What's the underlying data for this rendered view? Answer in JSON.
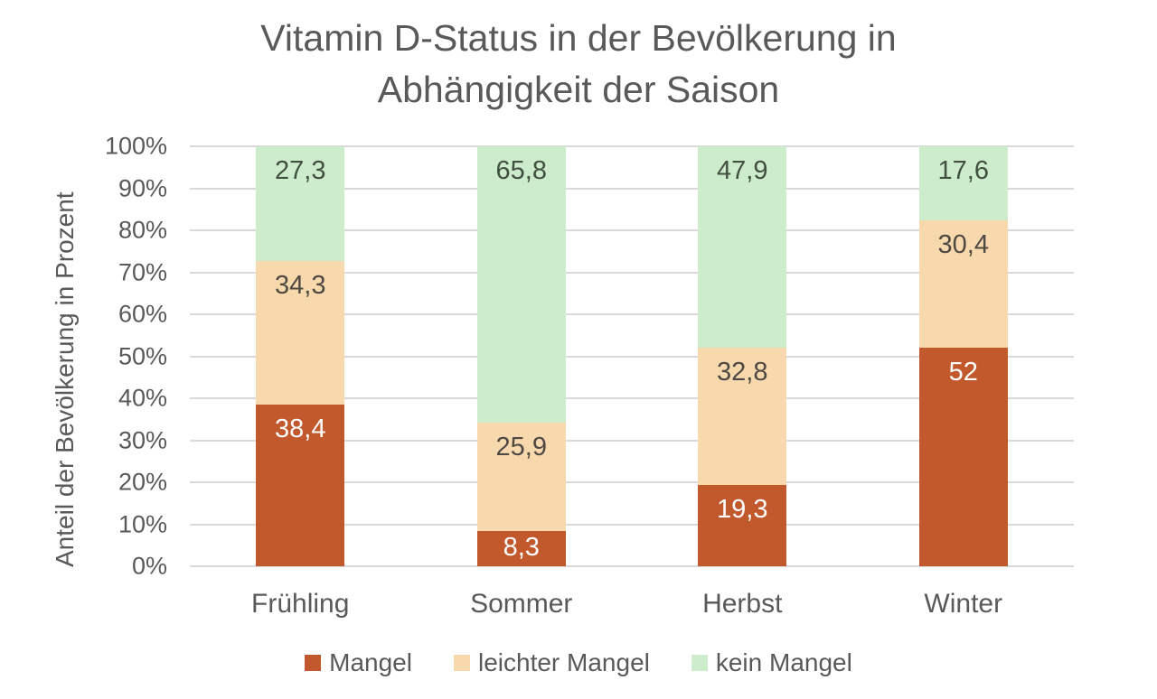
{
  "chart_data": {
    "type": "bar",
    "stacked": true,
    "title": "Vitamin D-Status in der Bevölkerung in Abhängigkeit der Saison",
    "ylabel": "Anteil der Bevölkerung in Prozent",
    "xlabel": "",
    "categories": [
      "Frühling",
      "Sommer",
      "Herbst",
      "Winter"
    ],
    "series": [
      {
        "name": "Mangel",
        "color": "#c2592c",
        "label_color": "#ffffff",
        "values": [
          38.4,
          8.3,
          19.3,
          52
        ],
        "display": [
          "38,4",
          "8,3",
          "19,3",
          "52"
        ]
      },
      {
        "name": "leichter Mangel",
        "color": "#f8d8ad",
        "label_color": "#4e4a43",
        "values": [
          34.3,
          25.9,
          32.8,
          30.4
        ],
        "display": [
          "34,3",
          "25,9",
          "32,8",
          "30,4"
        ]
      },
      {
        "name": "kein Mangel",
        "color": "#cdeccb",
        "label_color": "#415041",
        "values": [
          27.3,
          65.8,
          47.9,
          17.6
        ],
        "display": [
          "27,3",
          "65,8",
          "47,9",
          "17,6"
        ]
      }
    ],
    "yticks": [
      "0%",
      "10%",
      "20%",
      "30%",
      "40%",
      "50%",
      "60%",
      "70%",
      "80%",
      "90%",
      "100%"
    ],
    "ylim": [
      0,
      100
    ],
    "grid": true,
    "gridline_color": "#d9d9d9",
    "text_color": "#595959",
    "legend_position": "bottom"
  }
}
